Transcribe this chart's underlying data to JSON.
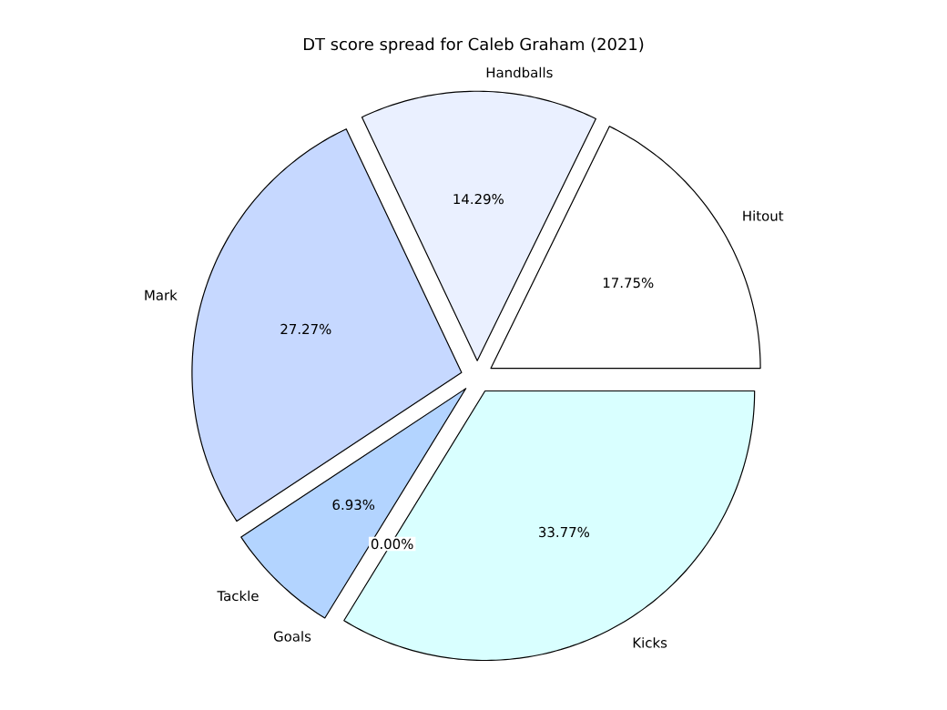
{
  "chart_data": {
    "type": "pie",
    "title": "DT score spread for Caleb Graham (2021)",
    "categories": [
      "Hitout",
      "Handballs",
      "Mark",
      "Tackle",
      "Goals",
      "Kicks"
    ],
    "values": [
      17.75,
      14.29,
      27.27,
      6.93,
      0.0,
      33.77
    ],
    "value_labels": [
      "17.75%",
      "14.29%",
      "27.27%",
      "6.93%",
      "0.00%",
      "33.77%"
    ],
    "colors": [
      "#ffffff",
      "#eaf0ff",
      "#c6d8ff",
      "#b3d4ff",
      "#a0c8ff",
      "#d9ffff"
    ]
  }
}
